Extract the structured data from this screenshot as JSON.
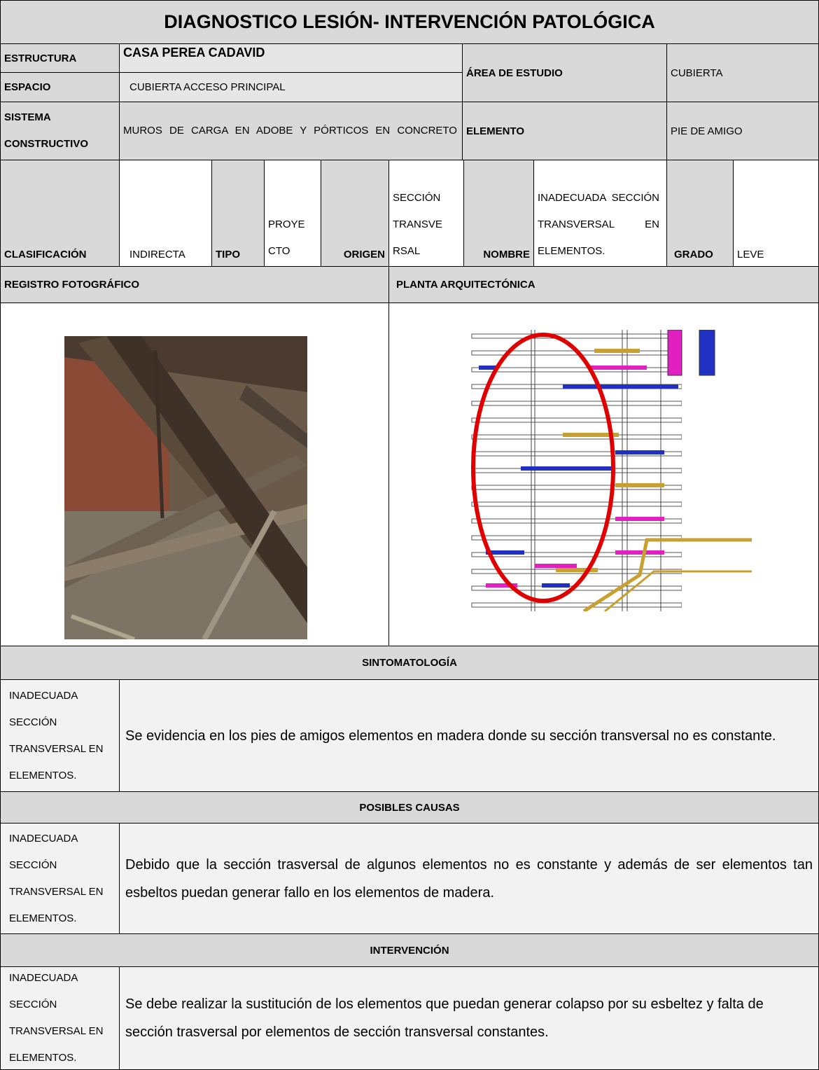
{
  "title": "DIAGNOSTICO LESIÓN- INTERVENCIÓN PATOLÓGICA",
  "header": {
    "estructura": {
      "label": "ESTRUCTURA",
      "value": "CASA PEREA CADAVID"
    },
    "espacio": {
      "label": "ESPACIO",
      "value": "CUBIERTA ACCESO PRINCIPAL"
    },
    "area_de_estudio": {
      "label": "ÁREA DE ESTUDIO",
      "value": "CUBIERTA"
    },
    "sistema_constructivo": {
      "label": "SISTEMA CONSTRUCTIVO",
      "value": "MUROS DE CARGA EN ADOBE Y PÓRTICOS EN CONCRETO"
    },
    "elemento": {
      "label": "ELEMENTO",
      "value": "PIE DE AMIGO"
    }
  },
  "classification": {
    "clasificacion": {
      "label": "CLASIFICACIÓN",
      "value": "INDIRECTA"
    },
    "tipo": {
      "label": "TIPO",
      "value": "PROYECTO"
    },
    "origen": {
      "label": "ORIGEN",
      "value": "SECCIÓN TRANSVERSAL"
    },
    "nombre": {
      "label": "NOMBRE",
      "value": "INADECUADA SECCIÓN TRANSVERSAL EN ELEMENTOS."
    },
    "grado": {
      "label": "GRADO",
      "value": "LEVE"
    }
  },
  "images": {
    "photo_label": "REGISTRO FOTOGRÁFICO",
    "plan_label": "PLANTA ARQUITECTÓNICA"
  },
  "sections": [
    {
      "title": "SINTOMATOLOGÍA",
      "lesion": "INADECUADA SECCIÓN TRANSVERSAL EN ELEMENTOS.",
      "text": "Se evidencia en los pies de amigos elementos en madera donde su sección transversal no es constante."
    },
    {
      "title": "POSIBLES CAUSAS",
      "lesion": "INADECUADA SECCIÓN TRANSVERSAL EN ELEMENTOS.",
      "text": "Debido que la sección trasversal de algunos elementos no es constante y además de ser elementos tan esbeltos puedan generar fallo en los elementos de madera."
    },
    {
      "title": "INTERVENCIÓN",
      "lesion": "INADECUADA SECCIÓN TRANSVERSAL EN ELEMENTOS.",
      "text": "Se debe realizar la sustitución de los elementos que puedan generar colapso por su esbeltez y falta de sección trasversal por elementos de sección transversal constantes."
    }
  ]
}
